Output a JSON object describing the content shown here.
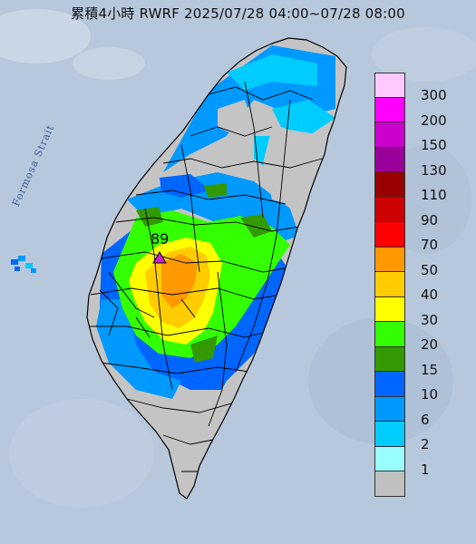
{
  "title": "累積4小時 RWRF 2025/07/28 04:00~07/28 08:00",
  "map_labels": {
    "strait": "Formosa Strait"
  },
  "max_marker": {
    "value": "89",
    "color": "#d020d0",
    "icon": "triangle-icon"
  },
  "legend": {
    "items": [
      {
        "label": "300",
        "color": "#ffc8ff"
      },
      {
        "label": "200",
        "color": "#ff00ff"
      },
      {
        "label": "150",
        "color": "#cc00cc"
      },
      {
        "label": "130",
        "color": "#990099"
      },
      {
        "label": "110",
        "color": "#990000"
      },
      {
        "label": "90",
        "color": "#cc0000"
      },
      {
        "label": "70",
        "color": "#ff0000"
      },
      {
        "label": "50",
        "color": "#ff9900"
      },
      {
        "label": "40",
        "color": "#ffcc00"
      },
      {
        "label": "30",
        "color": "#ffff00"
      },
      {
        "label": "20",
        "color": "#33ff00"
      },
      {
        "label": "15",
        "color": "#339900"
      },
      {
        "label": "10",
        "color": "#0066ff"
      },
      {
        "label": "6",
        "color": "#0099ff"
      },
      {
        "label": "2",
        "color": "#00ccff"
      },
      {
        "label": "1",
        "color": "#99ffff"
      },
      {
        "label": "",
        "color": "#c0c0c0"
      }
    ]
  },
  "colors": {
    "sea": "#b8c8dc",
    "land_base": "#c4c4c4",
    "border": "#000000"
  }
}
